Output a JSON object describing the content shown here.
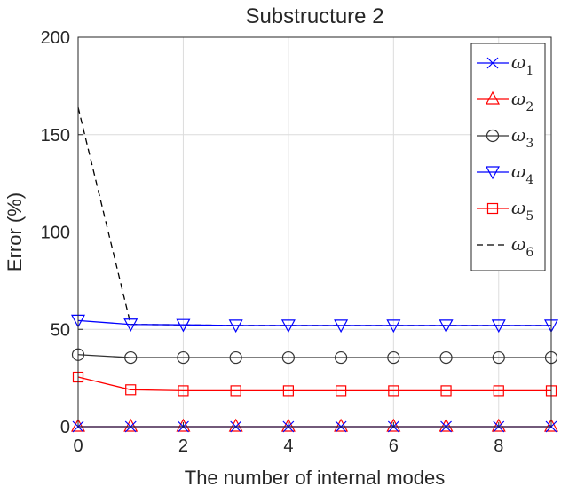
{
  "chart_data": {
    "type": "line",
    "title": "Substructure 2",
    "xlabel": "The number of internal modes",
    "ylabel": "Error (%)",
    "xlim": [
      0,
      9
    ],
    "ylim": [
      0,
      200
    ],
    "x_ticks": [
      "0",
      "2",
      "4",
      "6",
      "8"
    ],
    "y_ticks": [
      "0",
      "50",
      "100",
      "150",
      "200"
    ],
    "grid": true,
    "legend_position": "top-right",
    "x": [
      0,
      1,
      2,
      3,
      4,
      5,
      6,
      7,
      8,
      9
    ],
    "series": [
      {
        "name": "ω1",
        "symbol": "ω",
        "sub": "1",
        "color": "#0000ff",
        "marker": "x",
        "dash": "solid",
        "values": [
          0,
          0,
          0,
          0,
          0,
          0,
          0,
          0,
          0,
          0
        ]
      },
      {
        "name": "ω2",
        "symbol": "ω",
        "sub": "2",
        "color": "#ff0000",
        "marker": "triangle-up",
        "dash": "solid",
        "values": [
          0,
          0,
          0,
          0,
          0,
          0,
          0,
          0,
          0,
          0
        ]
      },
      {
        "name": "ω3",
        "symbol": "ω",
        "sub": "3",
        "color": "#333333",
        "marker": "circle",
        "dash": "solid",
        "values": [
          37,
          35.5,
          35.5,
          35.5,
          35.5,
          35.5,
          35.5,
          35.5,
          35.5,
          35.5
        ]
      },
      {
        "name": "ω4",
        "symbol": "ω",
        "sub": "4",
        "color": "#0000ff",
        "marker": "triangle-down",
        "dash": "solid",
        "values": [
          54.5,
          52.5,
          52.3,
          52,
          52,
          52,
          52,
          52,
          52,
          52
        ]
      },
      {
        "name": "ω5",
        "symbol": "ω",
        "sub": "5",
        "color": "#ff0000",
        "marker": "square",
        "dash": "solid",
        "values": [
          25.5,
          19,
          18.5,
          18.5,
          18.5,
          18.5,
          18.5,
          18.5,
          18.5,
          18.5
        ]
      },
      {
        "name": "ω6",
        "symbol": "ω",
        "sub": "6",
        "color": "#000000",
        "marker": "none",
        "dash": "dashed",
        "values": [
          164,
          52.5,
          52.3,
          52,
          52,
          52,
          52,
          52,
          52,
          52
        ]
      }
    ]
  }
}
